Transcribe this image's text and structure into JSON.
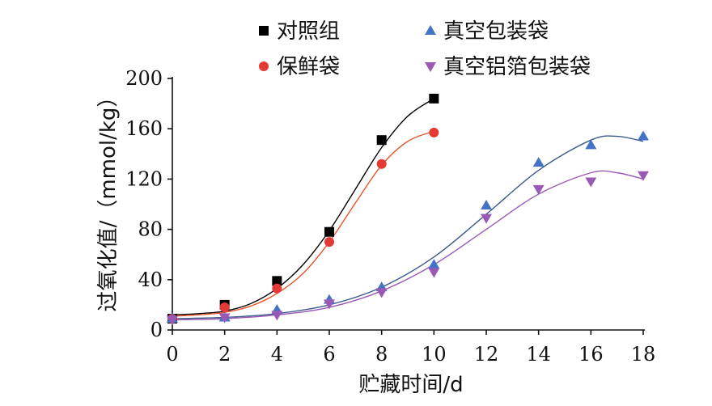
{
  "chart_data": {
    "type": "scatter",
    "title": "",
    "xlabel": "贮藏时间/d",
    "ylabel": "过氧化值/（mmol/kg）",
    "xlim": [
      0,
      18
    ],
    "ylim": [
      0,
      200
    ],
    "xticks": [
      0,
      2,
      4,
      6,
      8,
      10,
      12,
      14,
      16,
      18
    ],
    "yticks": [
      0,
      40,
      80,
      120,
      160,
      200
    ],
    "grid": false,
    "legend_position": "top",
    "series": [
      {
        "name": "对照组",
        "marker": "square",
        "color": "#000000",
        "line_color": "#000000",
        "x": [
          0,
          2,
          4,
          6,
          8,
          10
        ],
        "y": [
          9,
          20,
          39,
          78,
          151,
          184
        ],
        "fit": [
          [
            0,
            12
          ],
          [
            1,
            13
          ],
          [
            2,
            15
          ],
          [
            3,
            21
          ],
          [
            4,
            33
          ],
          [
            5,
            52
          ],
          [
            6,
            79
          ],
          [
            7,
            112
          ],
          [
            8,
            145
          ],
          [
            9,
            170
          ],
          [
            10,
            184
          ]
        ]
      },
      {
        "name": "保鲜袋",
        "marker": "circle",
        "color": "#e53935",
        "line_color": "#e8542a",
        "x": [
          0,
          2,
          4,
          6,
          8,
          10
        ],
        "y": [
          9,
          18,
          33,
          70,
          132,
          157
        ],
        "fit": [
          [
            0,
            11
          ],
          [
            1,
            12
          ],
          [
            2,
            14
          ],
          [
            3,
            19
          ],
          [
            4,
            29
          ],
          [
            5,
            45
          ],
          [
            6,
            70
          ],
          [
            7,
            101
          ],
          [
            8,
            131
          ],
          [
            9,
            150
          ],
          [
            10,
            158
          ]
        ]
      },
      {
        "name": "真空包装袋",
        "marker": "triangle-up",
        "color": "#4472c4",
        "line_color": "#3a5a8c",
        "x": [
          0,
          2,
          4,
          6,
          8,
          10,
          12,
          14,
          16,
          18
        ],
        "y": [
          9,
          10,
          16,
          24,
          34,
          52,
          99,
          133,
          147,
          154
        ],
        "fit": [
          [
            0,
            9
          ],
          [
            2,
            10
          ],
          [
            4,
            13
          ],
          [
            6,
            20
          ],
          [
            8,
            34
          ],
          [
            10,
            58
          ],
          [
            12,
            92
          ],
          [
            14,
            127
          ],
          [
            16,
            151
          ],
          [
            17,
            154
          ],
          [
            18,
            150
          ]
        ]
      },
      {
        "name": "真空铝箔包装袋",
        "marker": "triangle-down",
        "color": "#9b59b6",
        "line_color": "#9b59b6",
        "x": [
          0,
          2,
          4,
          6,
          8,
          10,
          12,
          14,
          16,
          18
        ],
        "y": [
          8,
          10,
          12,
          21,
          30,
          46,
          89,
          112,
          118,
          123
        ],
        "fit": [
          [
            0,
            8
          ],
          [
            2,
            9
          ],
          [
            4,
            12
          ],
          [
            6,
            18
          ],
          [
            8,
            31
          ],
          [
            10,
            52
          ],
          [
            12,
            80
          ],
          [
            14,
            108
          ],
          [
            16,
            125
          ],
          [
            17,
            125
          ],
          [
            18,
            120
          ]
        ]
      }
    ]
  }
}
